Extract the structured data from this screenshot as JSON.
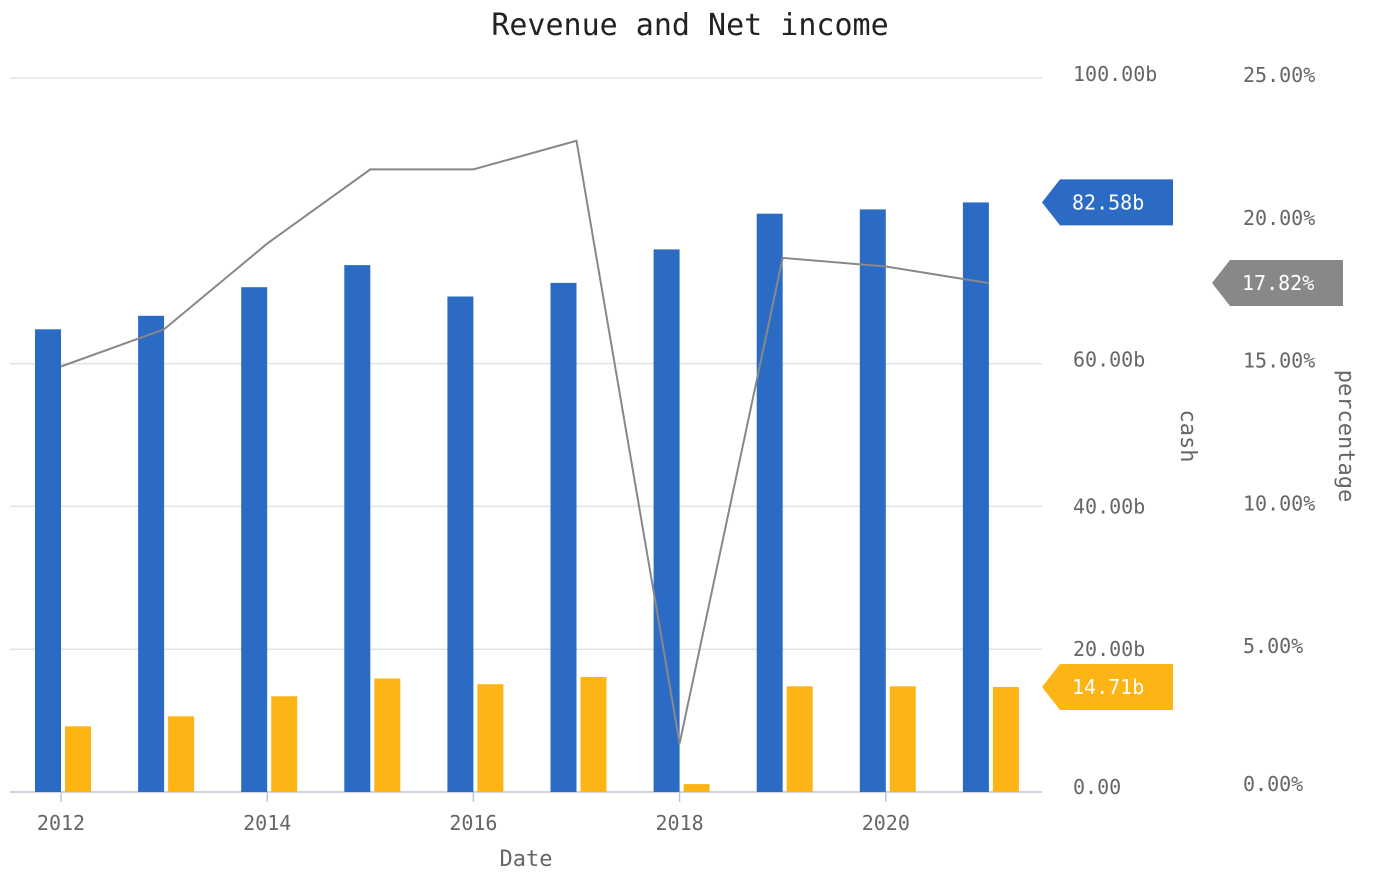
{
  "chart_data": {
    "type": "bar",
    "title": "Revenue and Net income",
    "xlabel": "Date",
    "x": [
      2012,
      2013,
      2014,
      2015,
      2016,
      2017,
      2018,
      2019,
      2020,
      2021
    ],
    "x_tick_labels": [
      "2012",
      "2014",
      "2016",
      "2018",
      "2020"
    ],
    "y_left": {
      "label": "cash",
      "range": [
        0,
        100
      ],
      "ticks": [
        0,
        20,
        40,
        60,
        100
      ],
      "tick_labels": [
        "0.00",
        "20.00b",
        "40.00b",
        "60.00b",
        "100.00b"
      ]
    },
    "y_right": {
      "label": "percentage",
      "range": [
        0,
        25
      ],
      "ticks": [
        0,
        5,
        10,
        15,
        20,
        25
      ],
      "tick_labels": [
        "0.00%",
        "5.00%",
        "10.00%",
        "15.00%",
        "20.00%",
        "25.00%"
      ]
    },
    "grid": true,
    "series": [
      {
        "type": "bar",
        "axis": "left",
        "color": "#2b6bc4",
        "values": [
          64.8,
          66.7,
          70.7,
          73.8,
          69.4,
          71.3,
          76.0,
          81.0,
          81.6,
          82.58
        ],
        "last_value_label": "82.58b"
      },
      {
        "type": "bar",
        "axis": "left",
        "color": "#fdb515",
        "values": [
          9.2,
          10.6,
          13.4,
          15.9,
          15.1,
          16.1,
          1.1,
          14.8,
          14.8,
          14.71
        ],
        "last_value_label": "14.71b"
      },
      {
        "type": "line",
        "axis": "right",
        "color": "#888888",
        "values": [
          14.9,
          16.2,
          19.2,
          21.8,
          21.8,
          22.8,
          1.7,
          18.7,
          18.4,
          17.82
        ],
        "last_value_label": "17.82%"
      }
    ]
  }
}
